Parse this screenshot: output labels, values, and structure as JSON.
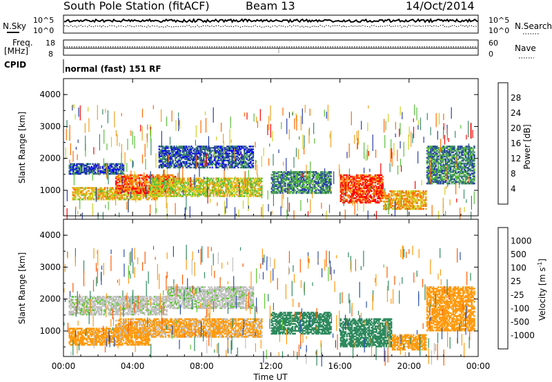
{
  "header": {
    "station": "South Pole Station (fitACF)",
    "beam": "Beam 13",
    "date": "14/Oct/2014"
  },
  "sky_panel": {
    "left_label": "N.Sky",
    "right_label": "N.Search",
    "left_ticks": [
      "10^5",
      "10^0"
    ],
    "right_ticks": [
      "10^5",
      "10^0"
    ]
  },
  "freq_panel": {
    "left_label_1": "Freq.",
    "left_label_2": "[MHz]",
    "right_label": "Nave",
    "left_ticks": [
      "18",
      "8"
    ],
    "right_ticks": [
      "60",
      "0"
    ]
  },
  "cpid": {
    "label": "CPID",
    "text": "normal (fast) 151 RF"
  },
  "colors": {
    "power_scale": [
      "#0000ff",
      "#2a3ea8",
      "#3d8a6a",
      "#5bbf3c",
      "#cfd020",
      "#f0a020",
      "#ff6a00",
      "#ff0000"
    ],
    "velocity_scale": [
      "#ff0000",
      "#ff5a00",
      "#ff9a10",
      "#c0c0c0",
      "#c0c0c0",
      "#60c830",
      "#2e8a5e",
      "#2a4eb0",
      "#1d2fd0"
    ]
  },
  "chart_data": [
    {
      "type": "heatmap",
      "name": "power",
      "xlabel": "Time UT",
      "ylabel": "Slant Range [km]",
      "x_ticks": [
        "00:00",
        "04:00",
        "08:00",
        "12:00",
        "16:00",
        "20:00",
        "00:00"
      ],
      "y_ticks": [
        1000,
        2000,
        3000,
        4000
      ],
      "ylim": [
        200,
        4500
      ],
      "colorbar": {
        "label": "Power [dB]",
        "ticks": [
          4,
          8,
          12,
          16,
          20,
          24,
          28
        ]
      },
      "echo_bands": [
        {
          "t0": 0.3,
          "t1": 3.5,
          "r0": 1500,
          "r1": 1850,
          "value": 6
        },
        {
          "t0": 0.5,
          "t1": 5.5,
          "r0": 700,
          "r1": 1100,
          "value": 20
        },
        {
          "t0": 3.0,
          "t1": 6.5,
          "r0": 900,
          "r1": 1500,
          "value": 26
        },
        {
          "t0": 5.0,
          "t1": 11.5,
          "r0": 800,
          "r1": 1400,
          "value": 18
        },
        {
          "t0": 5.5,
          "t1": 11.0,
          "r0": 1700,
          "r1": 2400,
          "value": 7
        },
        {
          "t0": 12.0,
          "t1": 15.5,
          "r0": 900,
          "r1": 1600,
          "value": 10
        },
        {
          "t0": 16.0,
          "t1": 18.5,
          "r0": 600,
          "r1": 1500,
          "value": 28
        },
        {
          "t0": 18.5,
          "t1": 21.0,
          "r0": 400,
          "r1": 1000,
          "value": 22
        },
        {
          "t0": 21.0,
          "t1": 23.8,
          "r0": 1200,
          "r1": 2400,
          "value": 10
        }
      ]
    },
    {
      "type": "heatmap",
      "name": "velocity",
      "xlabel": "Time UT",
      "ylabel": "Slant Range [km]",
      "x_ticks": [
        "00:00",
        "04:00",
        "08:00",
        "12:00",
        "16:00",
        "20:00",
        "00:00"
      ],
      "y_ticks": [
        1000,
        2000,
        3000,
        4000
      ],
      "ylim": [
        200,
        4500
      ],
      "colorbar": {
        "label": "Velocity [m s^-1]",
        "ticks": [
          -1000,
          -500,
          -100,
          -25,
          25,
          100,
          500,
          1000
        ]
      },
      "echo_bands": [
        {
          "t0": 0.3,
          "t1": 6.0,
          "r0": 1500,
          "r1": 2100,
          "value": 0
        },
        {
          "t0": 0.3,
          "t1": 5.0,
          "r0": 550,
          "r1": 1100,
          "value": -300
        },
        {
          "t0": 3.0,
          "t1": 11.5,
          "r0": 800,
          "r1": 1400,
          "value": -150
        },
        {
          "t0": 6.0,
          "t1": 11.0,
          "r0": 1700,
          "r1": 2400,
          "value": 0
        },
        {
          "t0": 12.0,
          "t1": 15.5,
          "r0": 900,
          "r1": 1600,
          "value": 300
        },
        {
          "t0": 16.0,
          "t1": 19.0,
          "r0": 500,
          "r1": 1400,
          "value": 300
        },
        {
          "t0": 19.0,
          "t1": 21.0,
          "r0": 400,
          "r1": 900,
          "value": -300
        },
        {
          "t0": 21.0,
          "t1": 23.8,
          "r0": 1000,
          "r1": 2400,
          "value": -300
        }
      ]
    }
  ]
}
